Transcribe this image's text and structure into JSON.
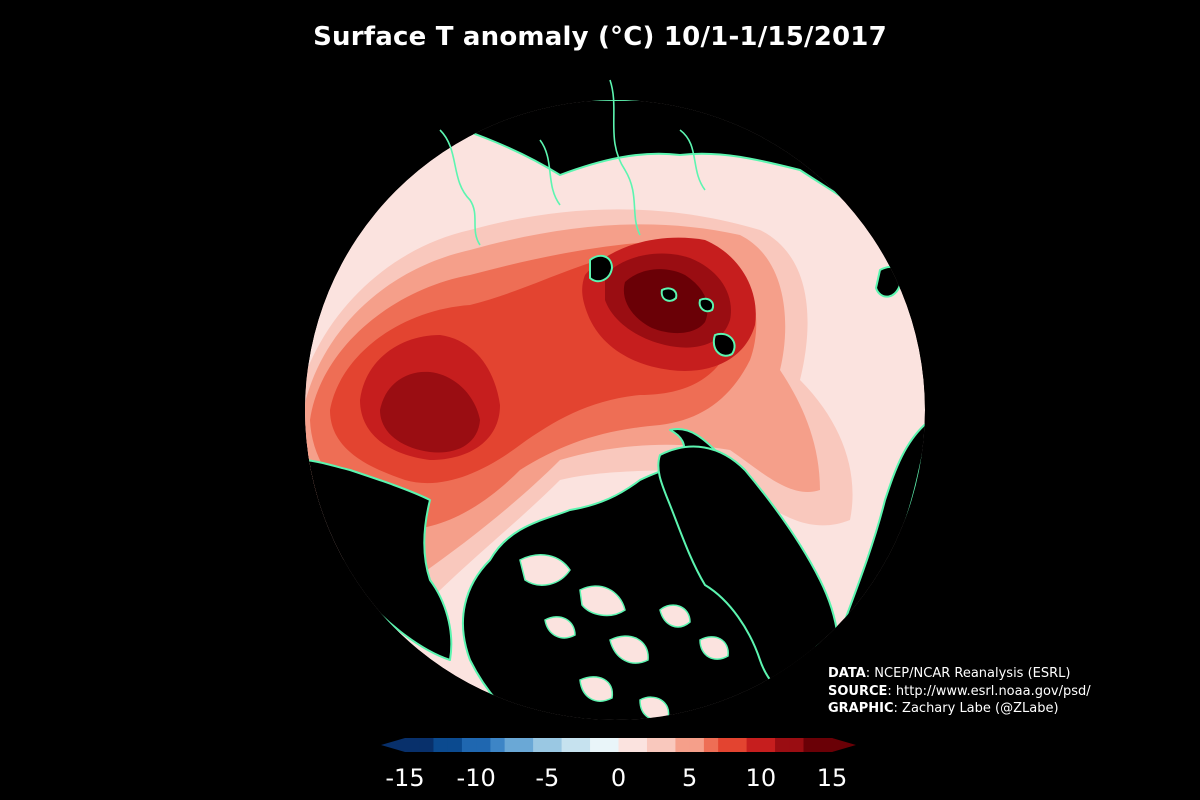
{
  "title": "Surface T anomaly (°C) 10/1-1/15/2017",
  "credits": [
    {
      "label": "DATA",
      "text": ": NCEP/NCAR Reanalysis (ESRL)"
    },
    {
      "label": "SOURCE",
      "text": ": http://www.esrl.noaa.gov/psd/"
    },
    {
      "label": "GRAPHIC",
      "text": ": Zachary Labe (@ZLabe)"
    }
  ],
  "colorbar": {
    "min": -15,
    "max": 15,
    "step": 1,
    "extend": "both",
    "tick_labels": [
      "-15",
      "-10",
      "-5",
      "0",
      "5",
      "10",
      "15"
    ],
    "tick_values": [
      -15,
      -10,
      -5,
      0,
      5,
      10,
      15
    ]
  },
  "colors": {
    "background": "#000000",
    "coastline": "#5cf5b0",
    "land": "#000000",
    "warm_scale": [
      "#fbe3df",
      "#f9c8bd",
      "#f59f8a",
      "#ee6e55",
      "#e34430",
      "#c61e1e",
      "#9a0d12",
      "#6a0006"
    ],
    "cold_scale": [
      "#08306b",
      "#0b4a8f",
      "#1f67b0",
      "#3d85c6",
      "#6aa8d6",
      "#9ac8e3",
      "#c6e2ef",
      "#e9f5f9"
    ]
  }
}
